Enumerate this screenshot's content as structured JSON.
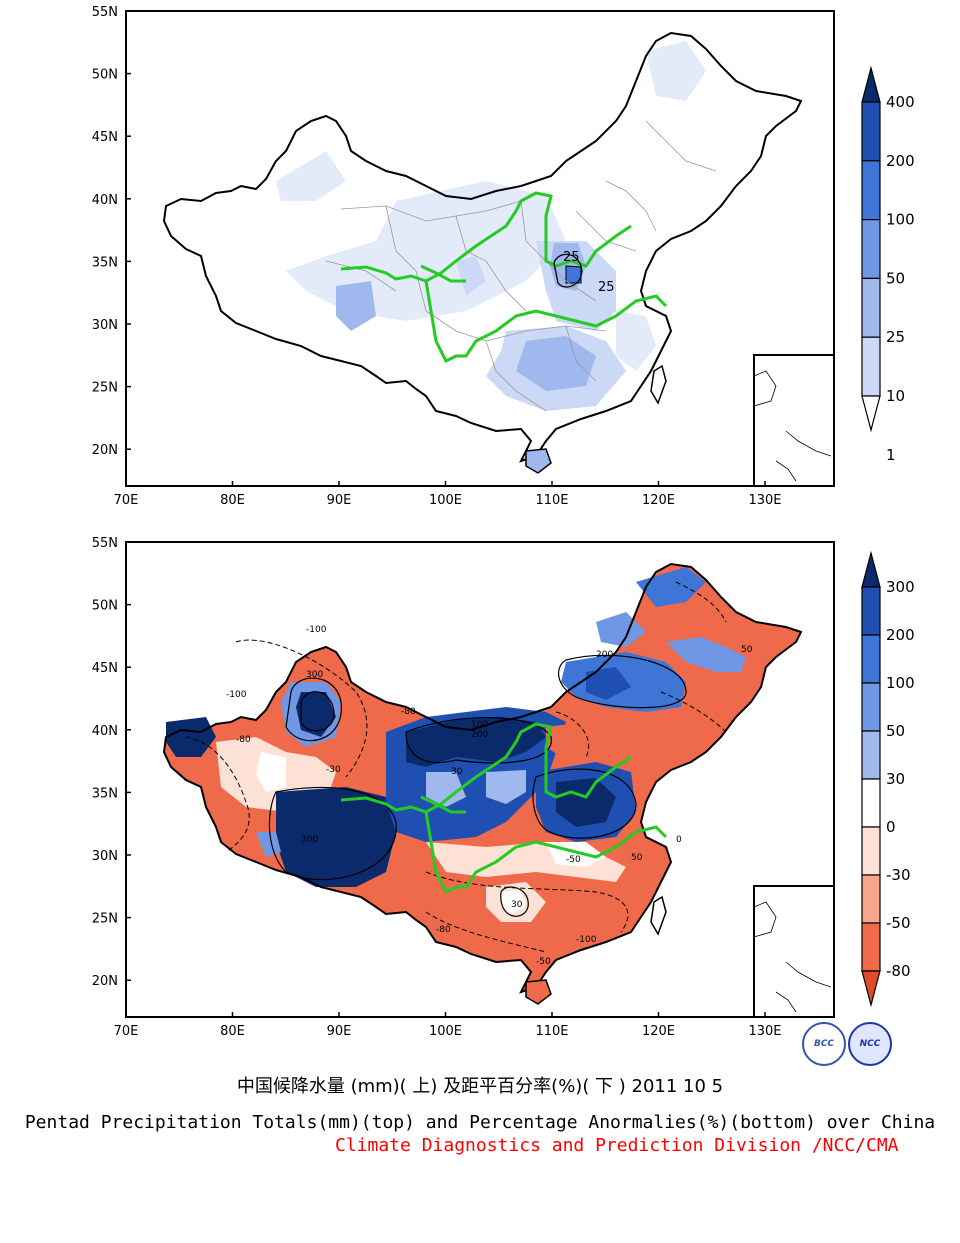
{
  "maps": [
    {
      "name": "pentad-precip-totals",
      "lat_labels": [
        "55N",
        "50N",
        "45N",
        "40N",
        "35N",
        "30N",
        "25N",
        "20N"
      ],
      "lon_labels": [
        "70E",
        "80E",
        "90E",
        "100E",
        "110E",
        "120E",
        "130E"
      ],
      "contour_labels": [
        "25",
        "25"
      ],
      "colorbar": {
        "levels": [
          "400",
          "200",
          "100",
          "50",
          "25",
          "10",
          "1"
        ],
        "colors": [
          "#0b2a6b",
          "#1f4fb0",
          "#3f75d6",
          "#6f97e3",
          "#9fb8ee",
          "#ccd9f6",
          "#ffffff"
        ]
      }
    },
    {
      "name": "percentage-anomalies",
      "lat_labels": [
        "55N",
        "50N",
        "45N",
        "40N",
        "35N",
        "30N",
        "25N",
        "20N"
      ],
      "lon_labels": [
        "70E",
        "80E",
        "90E",
        "100E",
        "110E",
        "120E",
        "130E"
      ],
      "contour_labels": [
        "300",
        "200",
        "100",
        "50",
        "30",
        "-30",
        "-50",
        "-80",
        "-100",
        "0"
      ],
      "colorbar": {
        "levels": [
          "300",
          "200",
          "100",
          "50",
          "30",
          "0",
          "-30",
          "-50",
          "-80"
        ],
        "colors": [
          "#0b2a6b",
          "#1f4fb0",
          "#3f75d6",
          "#6f97e3",
          "#9fb8ee",
          "#ffffff",
          "#fde0d6",
          "#f7a58c",
          "#ef6a4a",
          "#e34a2a"
        ]
      }
    }
  ],
  "caption": {
    "chinese": "中国候降水量 (mm)( 上) 及距平百分率(%)( 下 ) 2011 10 5",
    "english": "Pentad Precipitation Totals(mm)(top) and Percentage Anormalies(%)(bottom) over China",
    "credit": "Climate Diagnostics and Prediction Division /NCC/CMA"
  },
  "logos": [
    "BCC",
    "NCC"
  ],
  "colors": {
    "river": "#22cc22",
    "credit": "#ff0000"
  }
}
